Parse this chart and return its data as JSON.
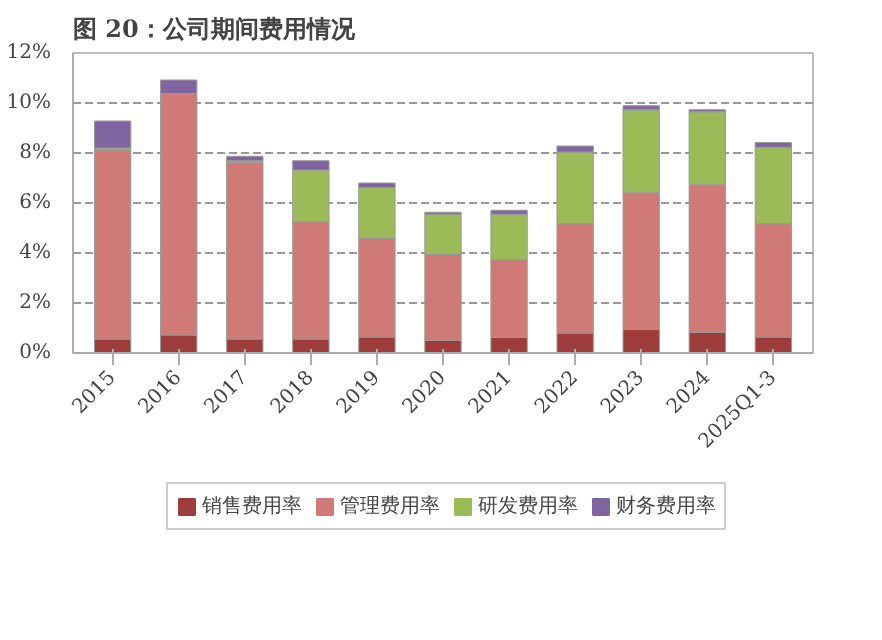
{
  "chart_data": {
    "type": "bar",
    "stacked": true,
    "title": "图 20：公司期间费用情况",
    "categories": [
      "2015",
      "2016",
      "2017",
      "2018",
      "2019",
      "2020",
      "2021",
      "2022",
      "2023",
      "2024",
      "2025Q1-3"
    ],
    "series": [
      {
        "name": "销售费用率",
        "color": "#9e3b3b",
        "values": [
          0.56,
          0.72,
          0.56,
          0.56,
          0.64,
          0.51,
          0.62,
          0.8,
          0.94,
          0.83,
          0.64
        ]
      },
      {
        "name": "管理费用率",
        "color": "#d07a78",
        "values": [
          7.56,
          9.66,
          7.05,
          4.69,
          3.94,
          3.43,
          3.11,
          4.37,
          5.47,
          5.9,
          4.53
        ]
      },
      {
        "name": "研发费用率",
        "color": "#9bbb59",
        "values": [
          0.08,
          0.0,
          0.08,
          2.07,
          2.04,
          1.61,
          1.82,
          2.87,
          3.32,
          2.92,
          3.06
        ]
      },
      {
        "name": "财务费用率",
        "color": "#8064a2",
        "values": [
          1.08,
          0.54,
          0.18,
          0.37,
          0.18,
          0.08,
          0.16,
          0.24,
          0.16,
          0.08,
          0.19
        ]
      }
    ],
    "ylim": [
      0,
      12
    ],
    "yticks": [
      {
        "value": 0,
        "label": "0%"
      },
      {
        "value": 2,
        "label": "2%"
      },
      {
        "value": 4,
        "label": "4%"
      },
      {
        "value": 6,
        "label": "6%"
      },
      {
        "value": 8,
        "label": "8%"
      },
      {
        "value": 10,
        "label": "10%"
      },
      {
        "value": 12,
        "label": "12%"
      }
    ],
    "grid": "y",
    "legend": "bottom"
  }
}
